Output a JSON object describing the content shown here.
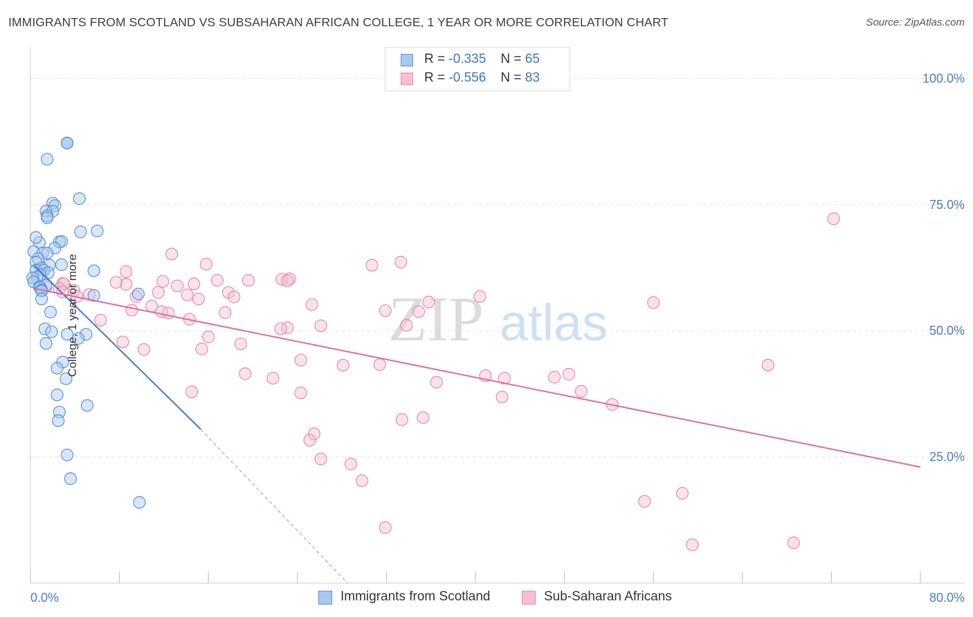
{
  "title": "IMMIGRANTS FROM SCOTLAND VS SUBSAHARAN AFRICAN COLLEGE, 1 YEAR OR MORE CORRELATION CHART",
  "source": "Source: ZipAtlas.com",
  "watermark": {
    "zip": "ZIP",
    "atlas": "atlas"
  },
  "legend": {
    "scotland": {
      "r_label": "R =",
      "r_value": "-0.335",
      "n_label": "N =",
      "n_value": "65"
    },
    "subsaharan": {
      "r_label": "R =",
      "r_value": "-0.556",
      "n_label": "N =",
      "n_value": "83"
    }
  },
  "colors": {
    "scotland_fill": "#a9c8f0",
    "scotland_stroke": "#5b92d8",
    "scotland_line": "#3a78d4",
    "subsaharan_fill": "#f6c0d0",
    "subsaharan_stroke": "#e88aa8",
    "subsaharan_line": "#e06b96",
    "axis_text": "#4a7bc4",
    "grid": "#e6e6e6"
  },
  "chart_data": {
    "type": "scatter",
    "title": "IMMIGRANTS FROM SCOTLAND VS SUBSAHARAN AFRICAN COLLEGE, 1 YEAR OR MORE CORRELATION CHART",
    "xlabel": "",
    "ylabel": "College, 1 year or more",
    "xlim": [
      0,
      80
    ],
    "ylim": [
      0,
      105
    ],
    "x_tick_labels": [
      "0.0%",
      "80.0%"
    ],
    "y_ticks": [
      25,
      50,
      75,
      100
    ],
    "y_tick_labels": [
      "25.0%",
      "50.0%",
      "75.0%",
      "100.0%"
    ],
    "grid": true,
    "series": [
      {
        "name": "Immigrants from Scotland",
        "r": -0.335,
        "n": 65,
        "trend": {
          "x0": 0.3,
          "y0": 63,
          "x1": 15.3,
          "y1": 30.5,
          "dash_to_x": 28.5,
          "dash_to_y": 0
        },
        "points": [
          [
            3.3,
            87.2
          ],
          [
            3.3,
            87.2
          ],
          [
            3.3,
            87.2
          ],
          [
            1.5,
            84
          ],
          [
            4.4,
            76.2
          ],
          [
            2,
            75.3
          ],
          [
            2.2,
            74.8
          ],
          [
            1.4,
            73.7
          ],
          [
            2,
            73.7
          ],
          [
            1.5,
            72.8
          ],
          [
            1.5,
            72.4
          ],
          [
            4.5,
            69.6
          ],
          [
            6,
            69.8
          ],
          [
            0.8,
            67.5
          ],
          [
            2.6,
            67.6
          ],
          [
            2.8,
            67.7
          ],
          [
            0.5,
            68.5
          ],
          [
            2.2,
            66.4
          ],
          [
            0.3,
            65.7
          ],
          [
            1.1,
            65.4
          ],
          [
            1.5,
            65.4
          ],
          [
            0.7,
            64.3
          ],
          [
            1.7,
            63
          ],
          [
            2.8,
            63.1
          ],
          [
            0.5,
            63.6
          ],
          [
            1,
            62.4
          ],
          [
            0.5,
            62
          ],
          [
            1.2,
            62
          ],
          [
            5.7,
            61.9
          ],
          [
            1.6,
            61.5
          ],
          [
            0.9,
            61.1
          ],
          [
            0.6,
            60.7
          ],
          [
            0.2,
            60.5
          ],
          [
            0.3,
            59.7
          ],
          [
            1.4,
            59
          ],
          [
            0.8,
            58.7
          ],
          [
            0.9,
            58.6
          ],
          [
            1,
            58.1
          ],
          [
            1,
            57.9
          ],
          [
            9.7,
            57.3
          ],
          [
            5.7,
            57
          ],
          [
            1,
            56.3
          ],
          [
            1.8,
            53.7
          ],
          [
            1.3,
            50.4
          ],
          [
            1.9,
            49.8
          ],
          [
            3.3,
            49.3
          ],
          [
            5,
            49.3
          ],
          [
            4.3,
            48.5
          ],
          [
            1.4,
            47.5
          ],
          [
            2.9,
            43.8
          ],
          [
            2.4,
            42.6
          ],
          [
            3.2,
            40.5
          ],
          [
            2.4,
            37.3
          ],
          [
            5.1,
            35.2
          ],
          [
            2.6,
            33.9
          ],
          [
            2.5,
            32.2
          ],
          [
            3.3,
            25.4
          ],
          [
            3.6,
            20.7
          ],
          [
            9.8,
            16
          ]
        ]
      },
      {
        "name": "Sub-Saharan Africans",
        "r": -0.556,
        "n": 83,
        "trend": {
          "x0": 0.3,
          "y0": 58.4,
          "x1": 80,
          "y1": 23
        },
        "points": [
          [
            72.2,
            72.2
          ],
          [
            12.7,
            65.2
          ],
          [
            33.3,
            63.6
          ],
          [
            15.8,
            63.2
          ],
          [
            30.7,
            63
          ],
          [
            19.6,
            60
          ],
          [
            22.6,
            60.2
          ],
          [
            23.3,
            60.3
          ],
          [
            11.9,
            59.8
          ],
          [
            8.6,
            61.7
          ],
          [
            16.8,
            60
          ],
          [
            14.7,
            59.3
          ],
          [
            23.1,
            59.9
          ],
          [
            8.6,
            59.2
          ],
          [
            7.7,
            59.6
          ],
          [
            2.9,
            59.4
          ],
          [
            3,
            59.3
          ],
          [
            13.2,
            58.9
          ],
          [
            1.4,
            58.7
          ],
          [
            2.6,
            58.4
          ],
          [
            3.9,
            58
          ],
          [
            17.8,
            57.6
          ],
          [
            2.9,
            57.7
          ],
          [
            11.5,
            57.6
          ],
          [
            14.1,
            57.1
          ],
          [
            15.1,
            56.3
          ],
          [
            18.3,
            56.7
          ],
          [
            9.5,
            56.8
          ],
          [
            5.3,
            57.2
          ],
          [
            4.2,
            56.8
          ],
          [
            10.9,
            54.9
          ],
          [
            40.4,
            56.8
          ],
          [
            35.8,
            55.7
          ],
          [
            56,
            55.6
          ],
          [
            25.3,
            55.2
          ],
          [
            9.1,
            54.1
          ],
          [
            34.9,
            53.8
          ],
          [
            31.9,
            54
          ],
          [
            11.8,
            53.8
          ],
          [
            17.5,
            53.6
          ],
          [
            12.4,
            53.5
          ],
          [
            14.3,
            52.3
          ],
          [
            6.3,
            52.1
          ],
          [
            26.1,
            51
          ],
          [
            33.8,
            51.1
          ],
          [
            23.1,
            50.6
          ],
          [
            22.5,
            50.4
          ],
          [
            16,
            48.8
          ],
          [
            8.3,
            47.8
          ],
          [
            18.9,
            47.4
          ],
          [
            15.4,
            46.4
          ],
          [
            10.2,
            46.3
          ],
          [
            24.3,
            44.2
          ],
          [
            28.1,
            43.2
          ],
          [
            31.4,
            43.3
          ],
          [
            66.3,
            43.2
          ],
          [
            48.4,
            41.4
          ],
          [
            19.3,
            41.5
          ],
          [
            40.9,
            41.1
          ],
          [
            42.6,
            40.6
          ],
          [
            21.8,
            40.6
          ],
          [
            36.5,
            39.8
          ],
          [
            47.1,
            40.8
          ],
          [
            49.5,
            38
          ],
          [
            14.5,
            37.9
          ],
          [
            24.3,
            37.7
          ],
          [
            42.4,
            36.9
          ],
          [
            52.3,
            35.4
          ],
          [
            35.3,
            32.8
          ],
          [
            33.4,
            32.4
          ],
          [
            25.5,
            29.6
          ],
          [
            25.1,
            28.3
          ],
          [
            26.1,
            24.6
          ],
          [
            28.8,
            23.6
          ],
          [
            29.8,
            20.3
          ],
          [
            58.6,
            17.8
          ],
          [
            55.2,
            16.2
          ],
          [
            31.9,
            11
          ],
          [
            59.5,
            7.6
          ],
          [
            68.6,
            8
          ]
        ]
      }
    ]
  },
  "x_axis": {
    "left_label": "0.0%",
    "right_label": "80.0%"
  },
  "y_axis_label": "College, 1 year or more",
  "bottom_legend": {
    "scotland": "Immigrants from Scotland",
    "subsaharan": "Sub-Saharan Africans"
  }
}
